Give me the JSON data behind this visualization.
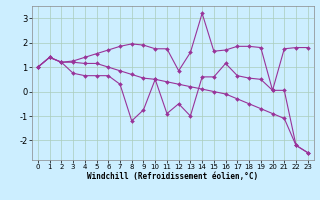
{
  "xlabel": "Windchill (Refroidissement éolien,°C)",
  "background_color": "#cceeff",
  "grid_color": "#aaccbb",
  "line_color": "#993399",
  "xlim": [
    -0.5,
    23.5
  ],
  "ylim": [
    -2.8,
    3.5
  ],
  "yticks": [
    -2,
    -1,
    0,
    1,
    2,
    3
  ],
  "xticks": [
    0,
    1,
    2,
    3,
    4,
    5,
    6,
    7,
    8,
    9,
    10,
    11,
    12,
    13,
    14,
    15,
    16,
    17,
    18,
    19,
    20,
    21,
    22,
    23
  ],
  "series": [
    [
      1.0,
      1.4,
      1.2,
      1.2,
      1.15,
      1.15,
      1.0,
      0.85,
      0.7,
      0.55,
      0.5,
      0.4,
      0.3,
      0.2,
      0.1,
      0.0,
      -0.1,
      -0.3,
      -0.5,
      -0.7,
      -0.9,
      -1.1,
      -2.2,
      -2.5
    ],
    [
      1.0,
      1.4,
      1.2,
      1.25,
      1.4,
      1.55,
      1.7,
      1.85,
      1.95,
      1.9,
      1.75,
      1.75,
      0.85,
      1.6,
      3.2,
      1.65,
      1.7,
      1.85,
      1.85,
      1.8,
      0.05,
      1.75,
      1.8,
      1.8
    ],
    [
      1.0,
      1.4,
      1.2,
      0.75,
      0.65,
      0.65,
      0.65,
      0.3,
      -1.2,
      -0.75,
      0.5,
      -0.9,
      -0.5,
      -1.0,
      0.6,
      0.6,
      1.15,
      0.65,
      0.55,
      0.5,
      0.05,
      0.05,
      -2.2,
      -2.5
    ]
  ]
}
